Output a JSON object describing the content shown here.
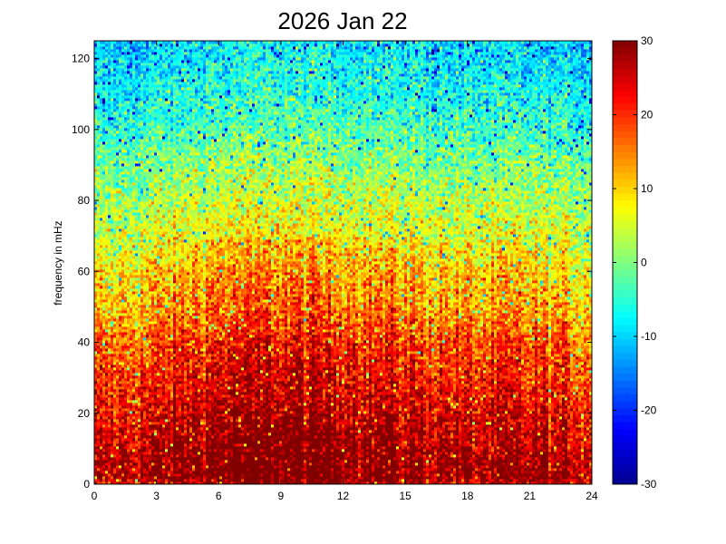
{
  "chart_data": {
    "type": "heatmap",
    "title": "2026 Jan 22",
    "xlabel": "",
    "ylabel": "frequency in mHz",
    "xlim": [
      0,
      24
    ],
    "ylim": [
      0,
      125
    ],
    "x_ticks": [
      0,
      3,
      6,
      9,
      12,
      15,
      18,
      21,
      24
    ],
    "y_ticks": [
      0,
      20,
      40,
      60,
      80,
      100,
      120
    ],
    "colorbar": {
      "colormap": "jet",
      "range": [
        -30,
        30
      ],
      "ticks": [
        30,
        20,
        10,
        0,
        -10,
        -20,
        -30
      ]
    },
    "colormap_stops": [
      "#00008f",
      "#0000ff",
      "#00ffff",
      "#ffff00",
      "#ff0000",
      "#800000"
    ],
    "intensity_profile": {
      "description_free_rows_mHz": [
        0,
        2,
        10,
        20,
        30,
        40,
        50,
        60,
        70,
        80,
        90,
        100,
        110,
        120,
        125
      ],
      "approx_level": [
        24,
        29,
        27,
        24,
        21,
        18,
        13,
        10,
        6,
        3,
        0,
        -4,
        -7,
        -9,
        -10
      ]
    },
    "time_profile_hours": [
      0,
      3,
      6,
      9,
      12,
      15,
      18,
      21,
      24
    ],
    "time_profile_level_offset": [
      -3,
      0,
      4,
      5,
      4,
      2,
      0,
      0,
      -2
    ]
  }
}
